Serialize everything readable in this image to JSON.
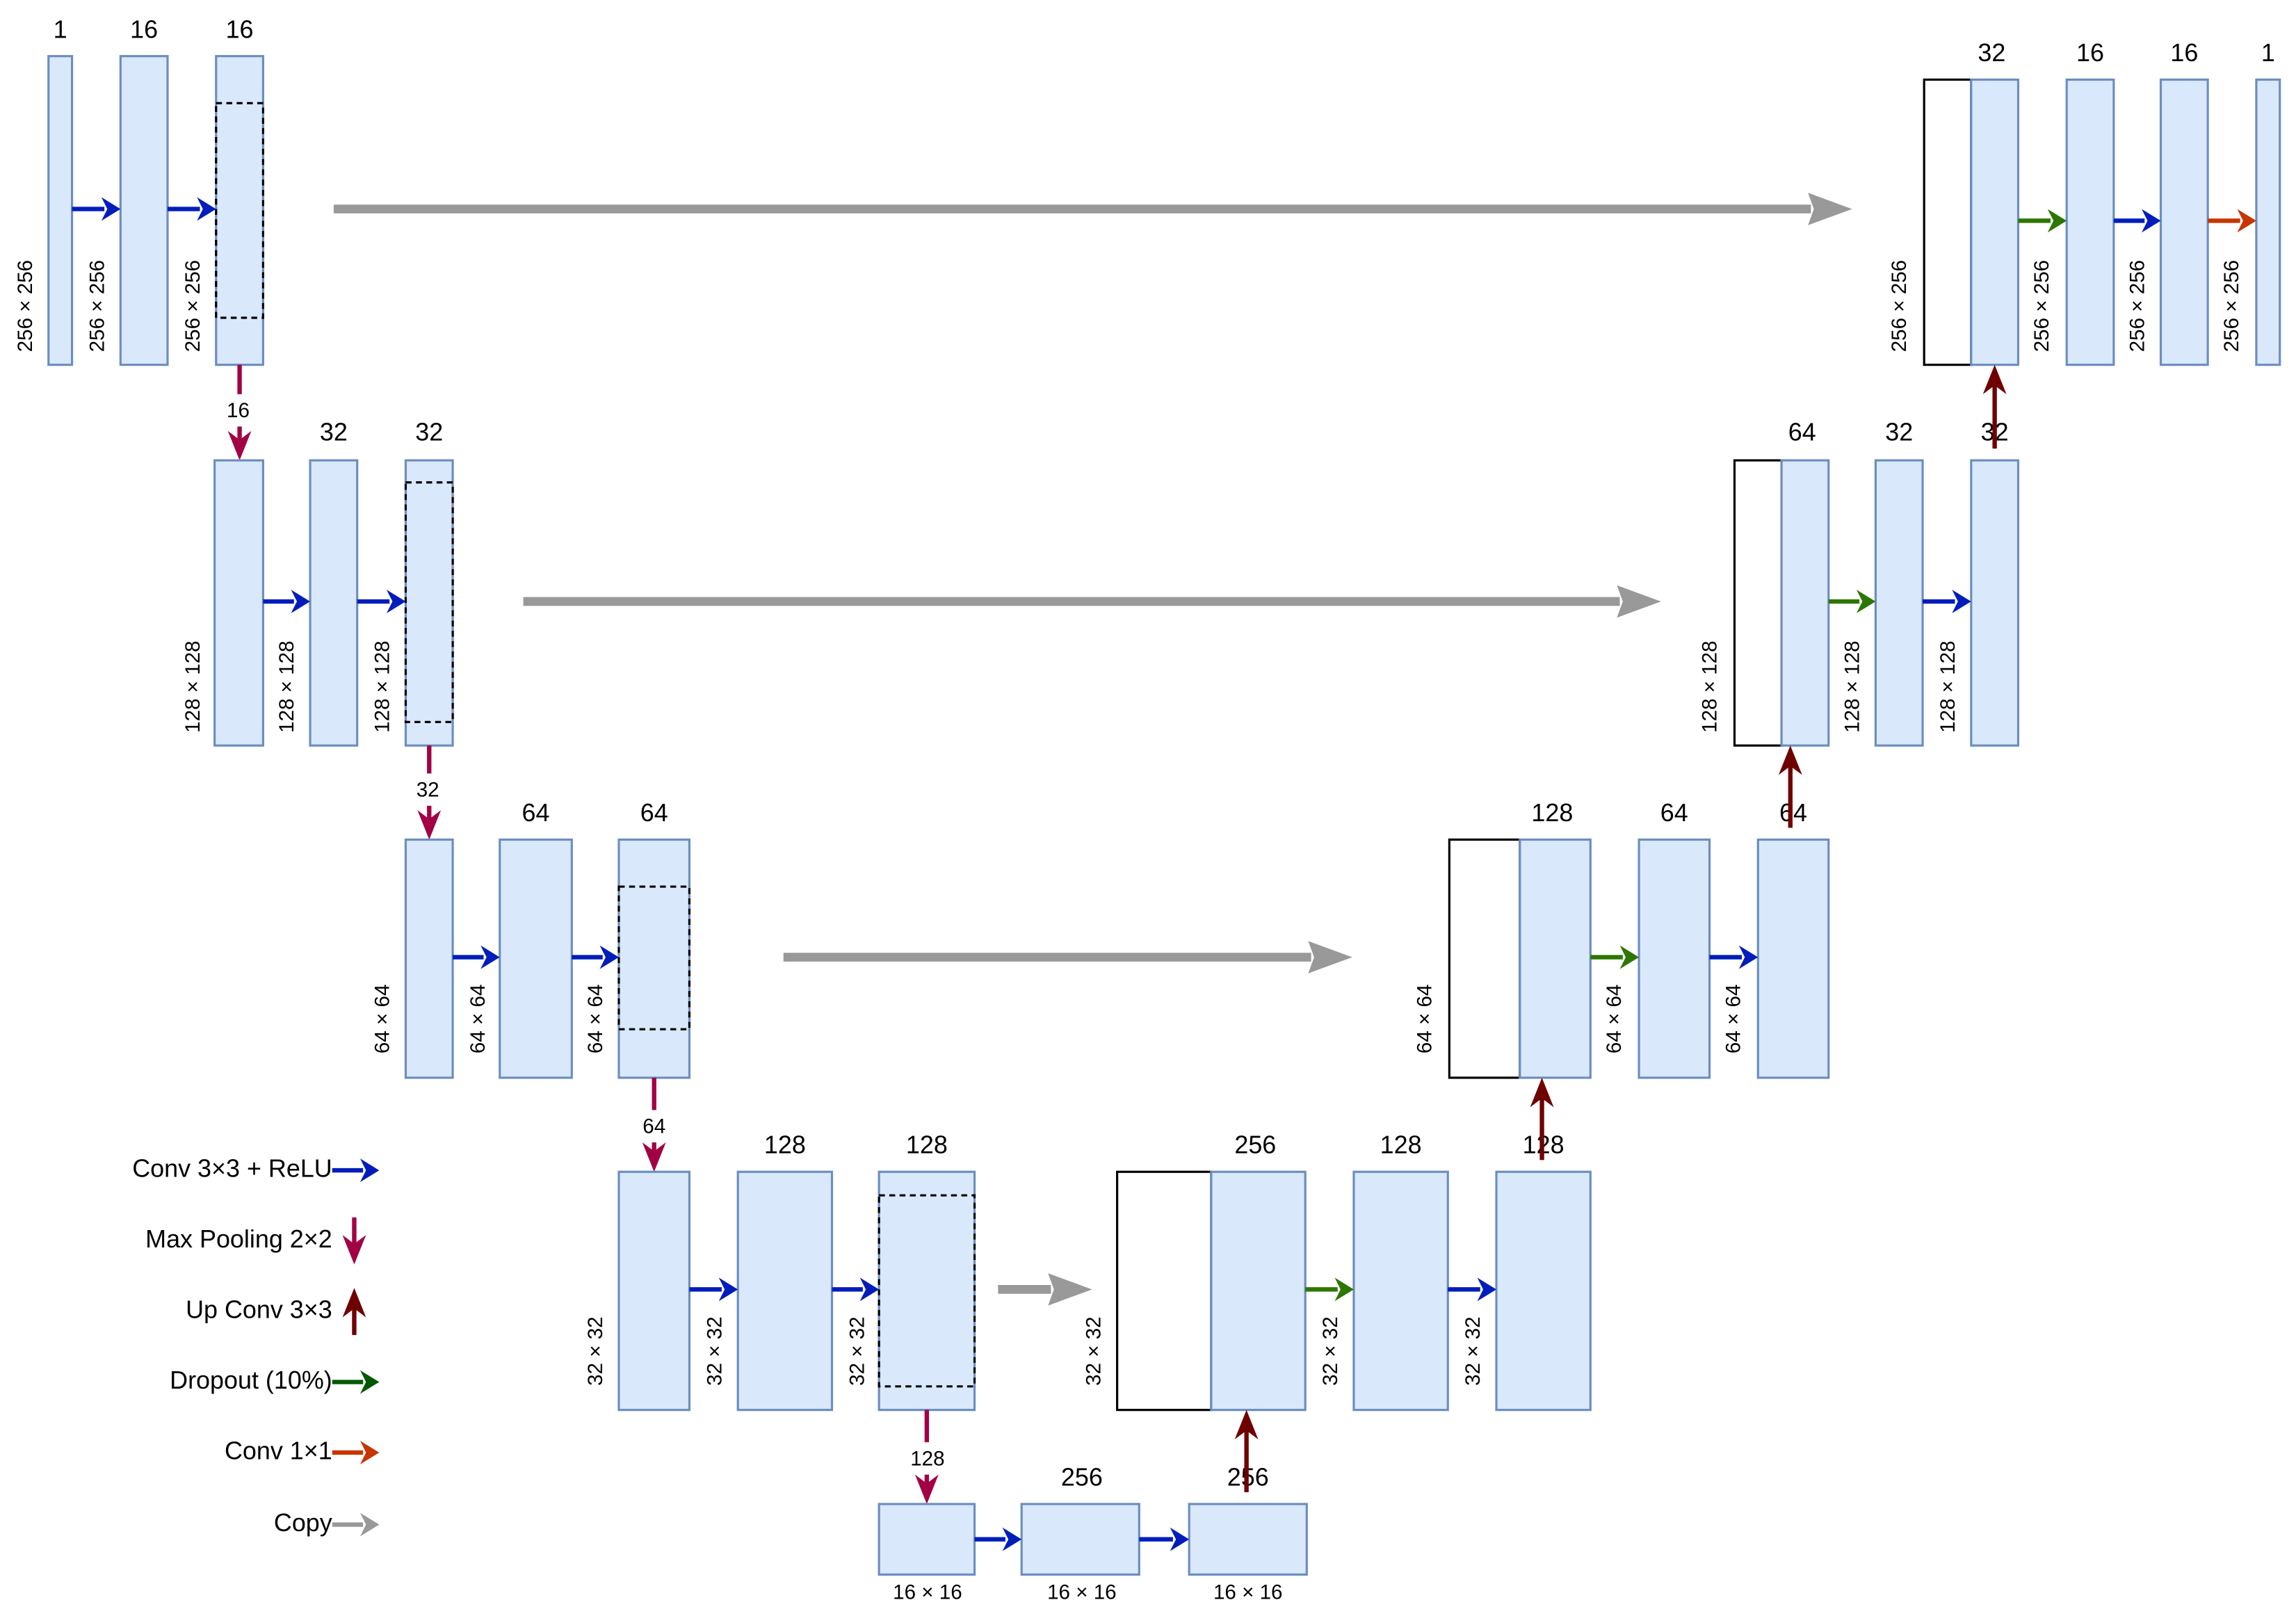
{
  "colors": {
    "conv": "#001dbc",
    "pool": "#a20044",
    "upconv": "#6f0000",
    "dropout": "#2d7600",
    "dropout_legend": "#005700",
    "conv1x1": "#c73500",
    "copy": "#999999",
    "block_fill": "#dae8fc",
    "block_stroke": "#6c8ebf"
  },
  "legend": [
    {
      "label": "Conv 3×3 + ReLU",
      "kind": "conv"
    },
    {
      "label": "Max Pooling 2×2",
      "kind": "pool"
    },
    {
      "label": "Up Conv 3×3",
      "kind": "upconv"
    },
    {
      "label": "Dropout (10%)",
      "kind": "dropout_legend"
    },
    {
      "label": "Conv 1×1",
      "kind": "conv1x1"
    },
    {
      "label": "Copy",
      "kind": "copy"
    }
  ],
  "encoder": [
    {
      "channels": [
        "1",
        "16",
        "16"
      ],
      "size": "256 × 256",
      "pool_label": "16"
    },
    {
      "channels": [
        "",
        "32",
        "32"
      ],
      "size": "128 × 128",
      "pool_label": "32"
    },
    {
      "channels": [
        "",
        "64",
        "64"
      ],
      "size": "64 × 64",
      "pool_label": "64"
    },
    {
      "channels": [
        "",
        "128",
        "128"
      ],
      "size": "32 × 32",
      "pool_label": "128"
    }
  ],
  "bottleneck": {
    "channels": [
      "",
      "256",
      "256"
    ],
    "size": "16 × 16"
  },
  "decoder": [
    {
      "channels": [
        "256",
        "128",
        "128"
      ],
      "size": "32 × 32"
    },
    {
      "channels": [
        "128",
        "64",
        "64"
      ],
      "size": "64 × 64"
    },
    {
      "channels": [
        "64",
        "32",
        "32"
      ],
      "size": "128 × 128"
    },
    {
      "channels": [
        "32",
        "16",
        "16",
        "1"
      ],
      "size": "256 × 256"
    }
  ]
}
